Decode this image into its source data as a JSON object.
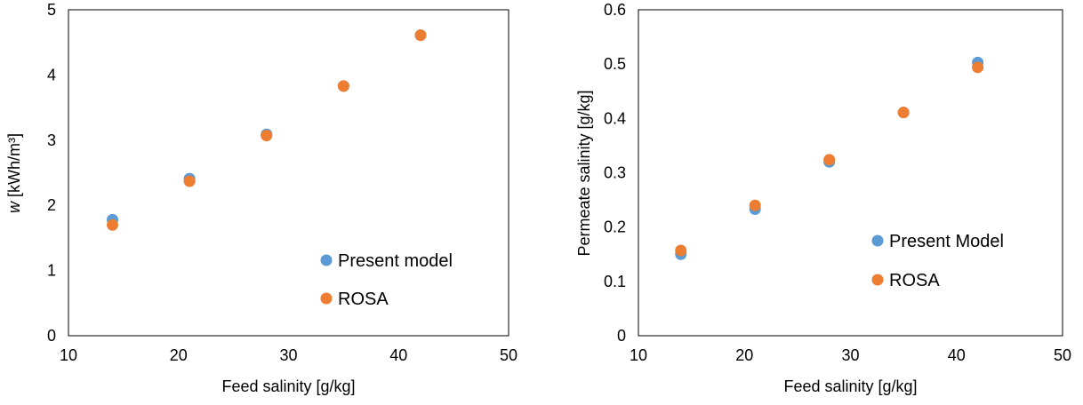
{
  "chart_data": [
    {
      "type": "scatter",
      "title": "",
      "xlabel": "Feed salinity [g/kg]",
      "ylabel_italic": "w",
      "ylabel_rest": " [kWh/m³]",
      "xlim": [
        10,
        50
      ],
      "ylim": [
        0,
        5
      ],
      "xticks": [
        10,
        20,
        30,
        40,
        50
      ],
      "yticks": [
        0,
        1,
        2,
        3,
        4,
        5
      ],
      "ytick_labels": [
        "0",
        "1",
        "2",
        "3",
        "4",
        "5"
      ],
      "grid": false,
      "legend_position": "bottom-right",
      "series": [
        {
          "name": "Present model",
          "color": "#5B9BD5",
          "x": [
            14,
            21,
            28,
            35,
            42
          ],
          "y": [
            1.78,
            2.41,
            3.09,
            3.83,
            4.61
          ]
        },
        {
          "name": "ROSA",
          "color": "#ED7D31",
          "x": [
            14,
            21,
            28,
            35,
            42
          ],
          "y": [
            1.7,
            2.37,
            3.07,
            3.83,
            4.61
          ]
        }
      ]
    },
    {
      "type": "scatter",
      "title": "",
      "xlabel": "Feed salinity [g/kg]",
      "ylabel": "Permeate salinity [g/kg]",
      "xlim": [
        10,
        50
      ],
      "ylim": [
        0,
        0.6
      ],
      "xticks": [
        10,
        20,
        30,
        40,
        50
      ],
      "yticks": [
        0,
        0.1,
        0.2,
        0.3,
        0.4,
        0.5,
        0.6
      ],
      "ytick_labels": [
        "0",
        "0.1",
        "0.2",
        "0.3",
        "0.4",
        "0.5",
        "0.6"
      ],
      "grid": false,
      "legend_position": "bottom-right",
      "series": [
        {
          "name": "Present Model",
          "color": "#5B9BD5",
          "x": [
            14,
            21,
            28,
            35,
            42
          ],
          "y": [
            0.15,
            0.233,
            0.32,
            0.411,
            0.503
          ]
        },
        {
          "name": "ROSA",
          "color": "#ED7D31",
          "x": [
            14,
            21,
            28,
            35,
            42
          ],
          "y": [
            0.157,
            0.24,
            0.324,
            0.411,
            0.494
          ]
        }
      ]
    }
  ]
}
